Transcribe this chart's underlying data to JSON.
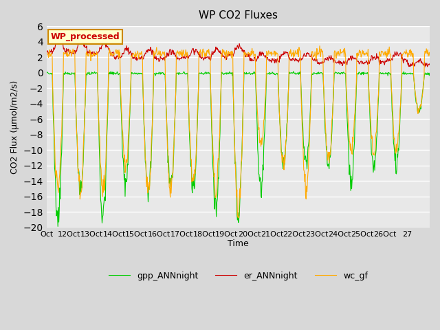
{
  "title": "WP CO2 Fluxes",
  "ylabel": "CO2 Flux (μmol/m2/s)",
  "xlabel": "Time",
  "ylim": [
    -20,
    6
  ],
  "yticks": [
    -20,
    -18,
    -16,
    -14,
    -12,
    -10,
    -8,
    -6,
    -4,
    -2,
    0,
    2,
    4,
    6
  ],
  "fig_bg_color": "#d8d8d8",
  "plot_bg_color": "#e8e8e8",
  "legend_label": "WP_processed",
  "legend_box_color": "#ffffcc",
  "legend_box_edge": "#cc8800",
  "legend_text_color": "#cc0000",
  "line_colors": {
    "gpp": "#00cc00",
    "er": "#cc0000",
    "wc": "#ffaa00"
  },
  "line_labels": {
    "gpp": "gpp_ANNnight",
    "er": "er_ANNnight",
    "wc": "wc_gf"
  },
  "n_days": 17,
  "x_tick_labels": [
    "Oct",
    "12Oct",
    "13Oct",
    "14Oct",
    "15Oct",
    "16Oct",
    "17Oct",
    "18Oct",
    "19Oct",
    "20Oct",
    "21Oct",
    "22Oct",
    "23Oct",
    "24Oct",
    "25Oct",
    "26Oct",
    "27"
  ],
  "gpp_mins": [
    -19,
    -15,
    -19,
    -15,
    -16,
    -15,
    -15,
    -18,
    -18,
    -15,
    -12,
    -12,
    -12,
    -14,
    -12,
    -12,
    -5
  ],
  "er_maxs": [
    4.2,
    4.0,
    3.8,
    3.0,
    2.8,
    2.8,
    3.0,
    3.0,
    3.5,
    2.5,
    2.5,
    2.5,
    2.0,
    2.0,
    2.0,
    2.5,
    1.5
  ],
  "wc_mins": [
    -15,
    -15,
    -15,
    -12,
    -15,
    -15,
    -14,
    -15,
    -18,
    -9,
    -12,
    -15,
    -11,
    -10,
    -10,
    -10,
    -5
  ]
}
